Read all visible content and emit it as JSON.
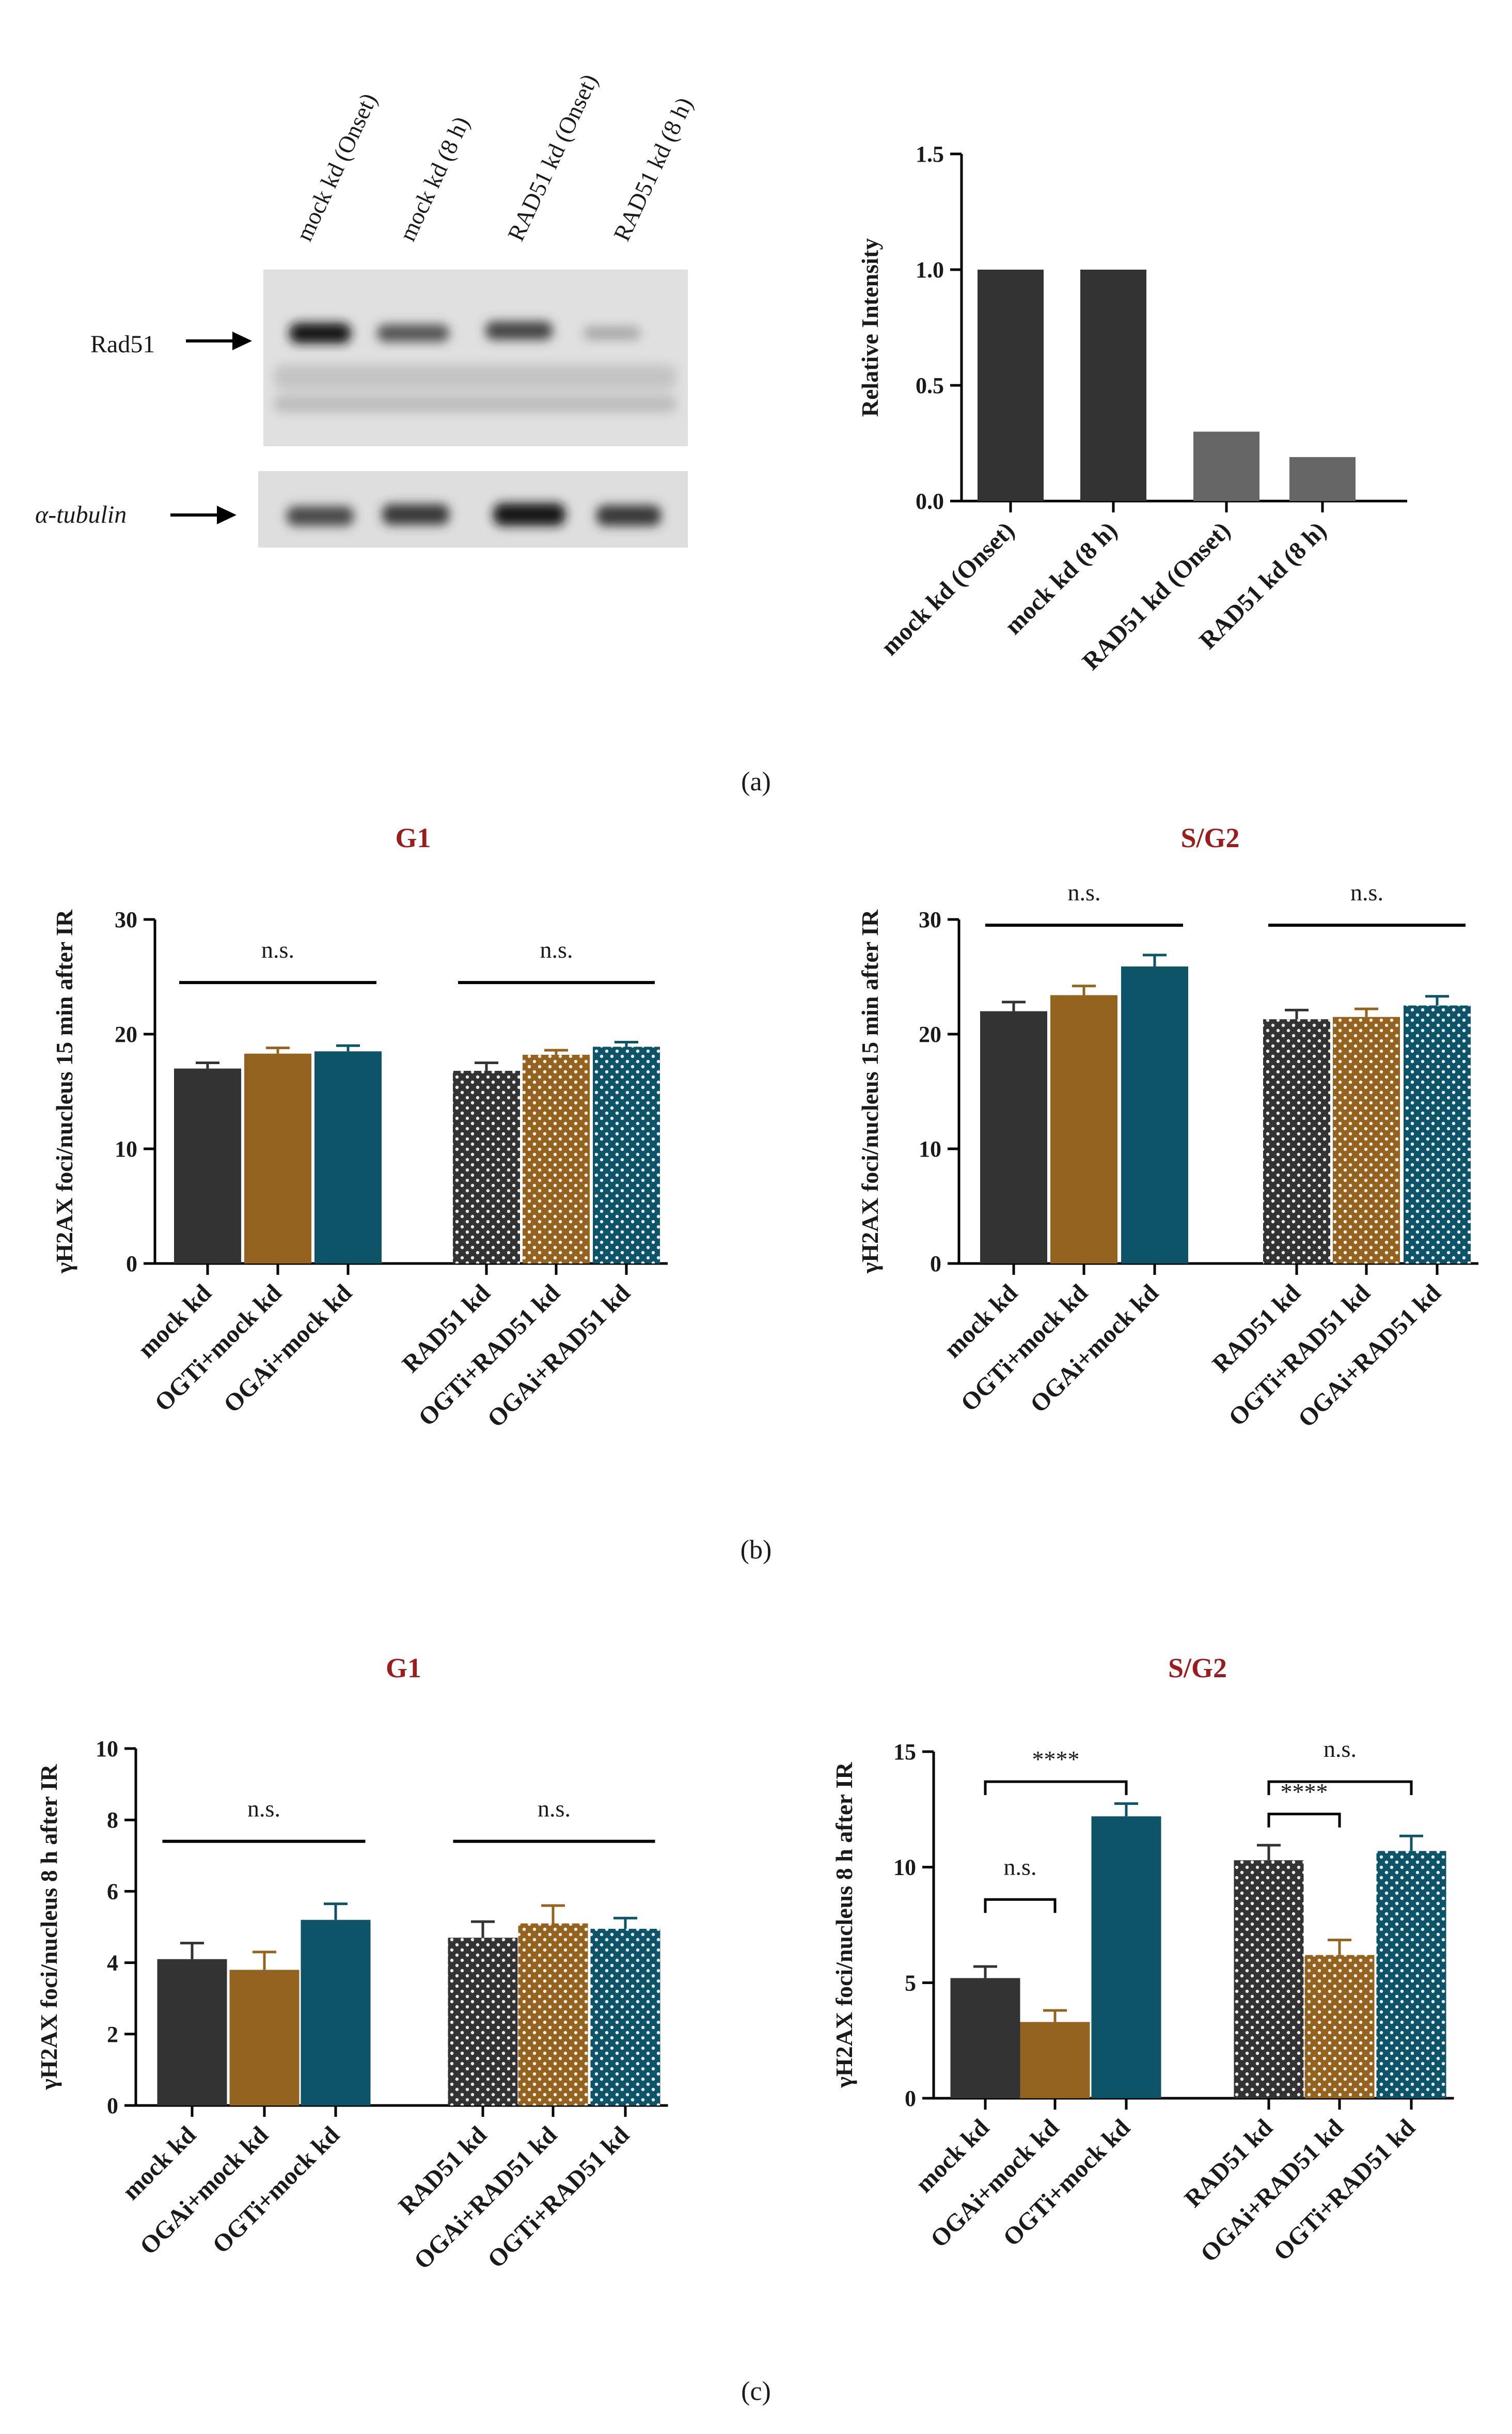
{
  "colors": {
    "dark": "#333333",
    "brown": "#94631f",
    "teal": "#0e5468",
    "gray": "#666666",
    "title": "#9b1c1c"
  },
  "panel_labels": {
    "a": "(a)",
    "b": "(b)",
    "c": "(c)"
  },
  "blot": {
    "lanes": [
      "mock kd (Onset)",
      "mock kd (8 h)",
      "RAD51 kd (Onset)",
      "RAD51 kd (8 h)"
    ],
    "rows": [
      "Rad51",
      "α-tubulin"
    ]
  },
  "chart_data": [
    {
      "id": "a",
      "type": "bar",
      "title": "",
      "categories": [
        "mock kd (Onset)",
        "mock kd (8 h)",
        "RAD51 kd (Onset)",
        "RAD51 kd (8 h)"
      ],
      "values": [
        1.0,
        1.0,
        0.3,
        0.19
      ],
      "bar_colors": [
        "dark",
        "dark",
        "gray",
        "gray"
      ],
      "ylabel": "Relative Intensity",
      "ylim": [
        0,
        1.5
      ],
      "yticks": [
        "0.0",
        "0.5",
        "1.0",
        "1.5"
      ],
      "ytick_values": [
        0,
        0.5,
        1.0,
        1.5
      ],
      "grid": false
    },
    {
      "id": "b1",
      "type": "bar",
      "title": "G1",
      "categories": [
        "mock kd",
        "OGTi+mock kd",
        "OGAi+mock kd",
        "RAD51 kd",
        "OGTi+RAD51 kd",
        "OGAi+RAD51 kd"
      ],
      "values": [
        17.0,
        18.3,
        18.5,
        16.8,
        18.2,
        18.9
      ],
      "errors": [
        0.5,
        0.5,
        0.5,
        0.7,
        0.4,
        0.4
      ],
      "bar_colors": [
        "dark",
        "brown",
        "teal",
        "dark",
        "brown",
        "teal"
      ],
      "dotted": [
        false,
        false,
        false,
        true,
        true,
        true
      ],
      "ylabel": "γH2AX foci/nucleus 15 min after IR",
      "ylim": [
        0,
        30
      ],
      "yticks": [
        "0",
        "10",
        "20",
        "30"
      ],
      "ytick_values": [
        0,
        10,
        20,
        30
      ],
      "brackets": [
        {
          "from": 0,
          "to": 2,
          "y": 24.5,
          "label": "n.s.",
          "style": "line"
        },
        {
          "from": 3,
          "to": 5,
          "y": 24.5,
          "label": "n.s.",
          "style": "line"
        }
      ],
      "grid": false
    },
    {
      "id": "b2",
      "type": "bar",
      "title": "S/G2",
      "categories": [
        "mock kd",
        "OGTi+mock kd",
        "OGAi+mock kd",
        "RAD51 kd",
        "OGTi+RAD51 kd",
        "OGAi+RAD51 kd"
      ],
      "values": [
        22.0,
        23.4,
        25.9,
        21.3,
        21.5,
        22.5
      ],
      "errors": [
        0.8,
        0.8,
        1.0,
        0.8,
        0.7,
        0.8
      ],
      "bar_colors": [
        "dark",
        "brown",
        "teal",
        "dark",
        "brown",
        "teal"
      ],
      "dotted": [
        false,
        false,
        false,
        true,
        true,
        true
      ],
      "ylabel": "γH2AX foci/nucleus 15 min after IR",
      "ylim": [
        0,
        30
      ],
      "yticks": [
        "0",
        "10",
        "20",
        "30"
      ],
      "ytick_values": [
        0,
        10,
        20,
        30
      ],
      "brackets": [
        {
          "from": 0,
          "to": 2,
          "y": 29.5,
          "label": "n.s.",
          "style": "line"
        },
        {
          "from": 3,
          "to": 5,
          "y": 29.5,
          "label": "n.s.",
          "style": "line"
        }
      ],
      "grid": false
    },
    {
      "id": "c1",
      "type": "bar",
      "title": "G1",
      "categories": [
        "mock kd",
        "OGAi+mock kd",
        "OGTi+mock kd",
        "RAD51 kd",
        "OGAi+RAD51 kd",
        "OGTi+RAD51 kd"
      ],
      "values": [
        4.1,
        3.8,
        5.2,
        4.7,
        5.1,
        4.95
      ],
      "errors": [
        0.45,
        0.5,
        0.45,
        0.45,
        0.5,
        0.3
      ],
      "bar_colors": [
        "dark",
        "brown",
        "teal",
        "dark",
        "brown",
        "teal"
      ],
      "dotted": [
        false,
        false,
        false,
        true,
        true,
        true
      ],
      "ylabel": "γH2AX foci/nucleus 8 h after IR",
      "ylim": [
        0,
        10
      ],
      "yticks": [
        "0",
        "2",
        "4",
        "6",
        "8",
        "10"
      ],
      "ytick_values": [
        0,
        2,
        4,
        6,
        8,
        10
      ],
      "brackets": [
        {
          "from": 0,
          "to": 2,
          "y": 7.4,
          "label": "n.s.",
          "style": "line"
        },
        {
          "from": 3,
          "to": 5,
          "y": 7.4,
          "label": "n.s.",
          "style": "line"
        }
      ],
      "grid": false
    },
    {
      "id": "c2",
      "type": "bar",
      "title": "S/G2",
      "categories": [
        "mock kd",
        "OGAi+mock kd",
        "OGTi+mock kd",
        "RAD51 kd",
        "OGAi+RAD51 kd",
        "OGTi+RAD51 kd"
      ],
      "values": [
        5.2,
        3.3,
        12.2,
        10.3,
        6.2,
        10.7
      ],
      "errors": [
        0.5,
        0.5,
        0.55,
        0.65,
        0.65,
        0.65
      ],
      "bar_colors": [
        "dark",
        "brown",
        "teal",
        "dark",
        "brown",
        "teal"
      ],
      "dotted": [
        false,
        false,
        false,
        true,
        true,
        true
      ],
      "ylabel": "γH2AX foci/nucleus  8 h after IR",
      "ylim": [
        0,
        15
      ],
      "yticks": [
        "0",
        "5",
        "10",
        "15"
      ],
      "ytick_values": [
        0,
        5,
        10,
        15
      ],
      "brackets": [
        {
          "from": 0,
          "to": 2,
          "y": 13.7,
          "label": "****",
          "style": "bracket"
        },
        {
          "from": 0,
          "to": 1,
          "y": 8.6,
          "label": "n.s.",
          "style": "bracket"
        },
        {
          "from": 3,
          "to": 5,
          "y": 13.7,
          "label": "n.s.",
          "style": "bracket"
        },
        {
          "from": 3,
          "to": 4,
          "y": 12.3,
          "label": "****",
          "style": "bracket"
        }
      ],
      "grid": false
    }
  ]
}
